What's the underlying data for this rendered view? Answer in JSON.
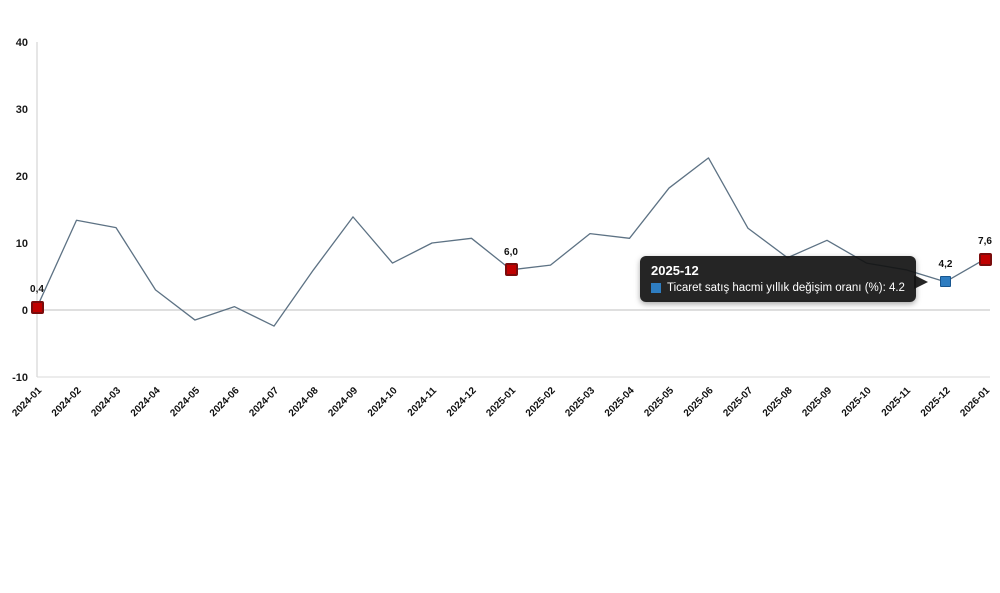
{
  "chart_data": {
    "type": "line",
    "title": "",
    "xlabel": "",
    "ylabel": "",
    "categories": [
      "2024-01",
      "2024-02",
      "2024-03",
      "2024-04",
      "2024-05",
      "2024-06",
      "2024-07",
      "2024-08",
      "2024-09",
      "2024-10",
      "2024-11",
      "2024-12",
      "2025-01",
      "2025-02",
      "2025-03",
      "2025-04",
      "2025-05",
      "2025-06",
      "2025-07",
      "2025-08",
      "2025-09",
      "2025-10",
      "2025-11",
      "2025-12",
      "2026-01"
    ],
    "series": [
      {
        "name": "Ticaret satış hacmi yıllık değişim oranı (%)",
        "color": "#5d7284",
        "values": [
          0.4,
          13.4,
          12.3,
          3.0,
          -1.5,
          0.5,
          -2.4,
          6.0,
          13.9,
          7.0,
          10.0,
          10.7,
          6.0,
          6.7,
          11.4,
          10.7,
          18.2,
          22.7,
          12.2,
          7.8,
          10.4,
          7.0,
          6.0,
          4.2,
          7.6
        ]
      }
    ],
    "ylim": [
      -10,
      40
    ],
    "yticks": [
      40,
      30,
      20,
      10,
      0,
      -10
    ],
    "legend": "hidden",
    "grid": "zero-line and bottom border only",
    "annotations": [
      {
        "category": "2024-01",
        "text": "0,4",
        "marker": "red-square"
      },
      {
        "category": "2025-01",
        "text": "6,0",
        "marker": "red-square"
      },
      {
        "category": "2025-12",
        "text": "4,2",
        "marker": "blue-square"
      },
      {
        "category": "2026-01",
        "text": "7,6",
        "marker": "red-square"
      }
    ],
    "colors": {
      "line": "#5d7284",
      "marker_red": "#c00000",
      "marker_red_border": "#7a0c0c",
      "marker_blue": "#2e7dc1",
      "marker_blue_border": "#18568f",
      "axis": "#cccccc",
      "text": "#1a1a1a"
    }
  },
  "tooltip": {
    "title": "2025-12",
    "row": "Ticaret satış hacmi yıllık değişim oranı (%): 4.2",
    "value": "4.2",
    "marker_color": "#2e7dc1"
  }
}
